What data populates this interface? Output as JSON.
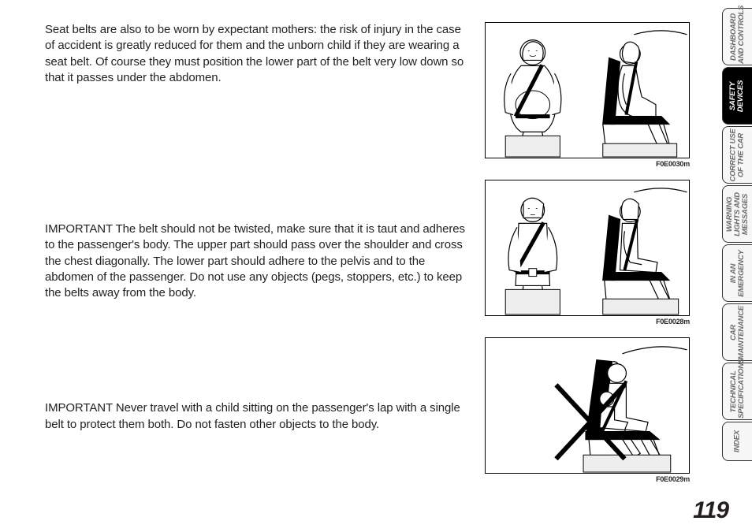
{
  "paragraphs": {
    "p1": "Seat belts are also to be worn by expectant mothers: the risk of injury in the case of accident is greatly reduced for them and the unborn child if they are wearing a seat belt. Of course they must position the lower part of the belt very low down so that it passes under the abdomen.",
    "p2": "IMPORTANT The belt should not be twisted, make sure that it is taut and adheres to the passenger's body. The upper part should pass over the shoulder and cross the chest diagonally. The lower part should adhere to the pelvis and to the abdomen of the passenger. Do not use any objects (pegs, stoppers, etc.) to keep the belts away from the body.",
    "p3": "IMPORTANT Never travel with a child sitting on the passenger's lap with a single belt to protect them both. Do not fasten other objects to the body."
  },
  "figures": {
    "f1": {
      "caption": "F0E0030m",
      "description": "pregnant-passenger-seatbelt"
    },
    "f2": {
      "caption": "F0E0028m",
      "description": "correct-seatbelt-position"
    },
    "f3": {
      "caption": "F0E0029m",
      "description": "child-on-lap-prohibited",
      "cross": true
    }
  },
  "tabs": [
    {
      "label": "DASHBOARD\nAND CONTROLS",
      "active": false
    },
    {
      "label": "SAFETY\nDEVICES",
      "active": true
    },
    {
      "label": "CORRECT USE\nOF THE CAR",
      "active": false
    },
    {
      "label": "WARNING\nLIGHTS AND\nMESSAGES",
      "active": false
    },
    {
      "label": "IN AN\nEMERGENCY",
      "active": false
    },
    {
      "label": "CAR\nMAINTENANCE",
      "active": false
    },
    {
      "label": "TECHNICAL\nSPECIFICATIONS",
      "active": false
    },
    {
      "label": "INDEX",
      "active": false,
      "small": true
    }
  ],
  "pageNumber": "119",
  "colors": {
    "text": "#231f20",
    "tabInactive": "#6b6b6b",
    "tabActiveBg": "#000000",
    "tabActiveFg": "#ffffff",
    "border": "#000000"
  }
}
